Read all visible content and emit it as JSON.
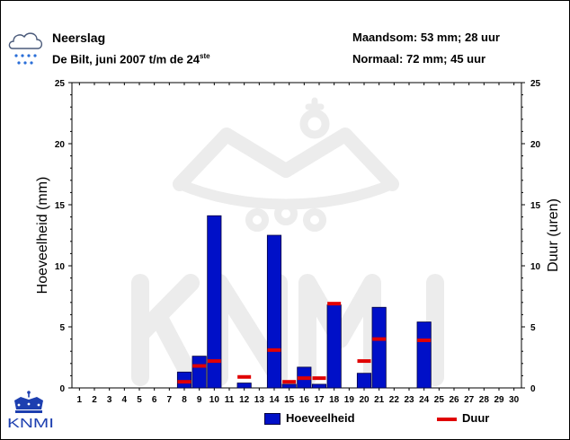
{
  "header": {
    "title": "Neerslag",
    "subtitle_main": "De Bilt, juni 2007 t/m de 24",
    "subtitle_sup": "ste",
    "monthly_total": "Maandsom: 53 mm; 28 uur",
    "normal": "Normaal: 72 mm; 45 uur"
  },
  "logo": {
    "text": "KNMI"
  },
  "colors": {
    "bar": "#0010c8",
    "bar_border": "#000040",
    "duration": "#e00000",
    "watermark": "#ececec"
  },
  "chart_data": {
    "type": "bar",
    "categories": [
      "1",
      "2",
      "3",
      "4",
      "5",
      "6",
      "7",
      "8",
      "9",
      "10",
      "11",
      "12",
      "13",
      "14",
      "15",
      "16",
      "17",
      "18",
      "19",
      "20",
      "21",
      "22",
      "23",
      "24",
      "25",
      "26",
      "27",
      "28",
      "29",
      "30"
    ],
    "series": [
      {
        "name": "Hoeveelheid",
        "axis": "left",
        "values": [
          0,
          0,
          0,
          0,
          0,
          0,
          0,
          1.3,
          2.6,
          14.1,
          0,
          0.4,
          0,
          12.5,
          0.3,
          1.7,
          0.3,
          6.8,
          0,
          1.2,
          6.6,
          0,
          0,
          5.4,
          0,
          0,
          0,
          0,
          0,
          0
        ]
      },
      {
        "name": "Duur",
        "axis": "right",
        "values": [
          null,
          null,
          null,
          null,
          null,
          null,
          null,
          0.5,
          1.8,
          2.2,
          null,
          0.9,
          null,
          3.1,
          0.5,
          0.8,
          0.8,
          6.9,
          null,
          2.2,
          4.0,
          null,
          null,
          3.9,
          null,
          null,
          null,
          null,
          null,
          null
        ]
      }
    ],
    "ylabel": "Hoeveelheid (mm)",
    "y2label": "Duur (uren)",
    "ylim": [
      0,
      25
    ],
    "y2lim": [
      0,
      25
    ],
    "yticks": [
      "0",
      "5",
      "10",
      "15",
      "20",
      "25"
    ],
    "y2ticks": [
      "0",
      "5",
      "10",
      "15",
      "20",
      "25"
    ],
    "grid": false,
    "legend": {
      "position": "bottom",
      "entries": [
        "Hoeveelheid",
        "Duur"
      ]
    }
  }
}
